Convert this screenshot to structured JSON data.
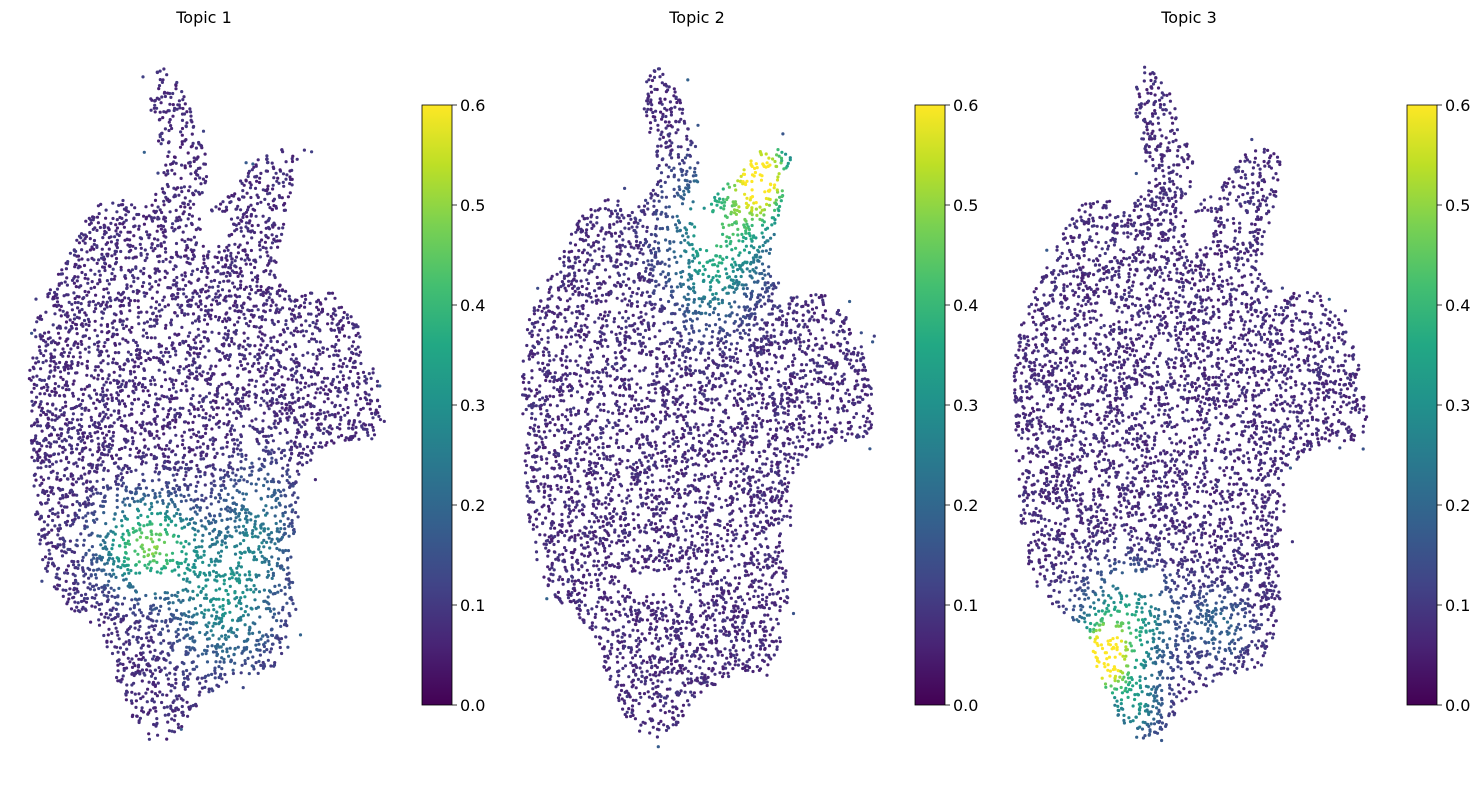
{
  "chart_data": [
    {
      "type": "scatter",
      "title": "Topic 1",
      "colorbar": {
        "colormap": "viridis",
        "range": [
          0.0,
          0.6
        ],
        "ticks": [
          "0.0",
          "0.1",
          "0.2",
          "0.3",
          "0.4",
          "0.5",
          "0.6"
        ]
      },
      "axes_visible": false,
      "high_value_regions": [
        {
          "location": "lower-center",
          "approx_value": 0.45
        },
        {
          "location": "lower-right",
          "approx_value": 0.28
        }
      ]
    },
    {
      "type": "scatter",
      "title": "Topic 2",
      "colorbar": {
        "colormap": "viridis",
        "range": [
          0.0,
          0.6
        ],
        "ticks": [
          "0.0",
          "0.1",
          "0.2",
          "0.3",
          "0.4",
          "0.5",
          "0.6"
        ]
      },
      "axes_visible": false,
      "high_value_regions": [
        {
          "location": "upper-right lobe",
          "approx_value": 0.6
        },
        {
          "location": "upper-center",
          "approx_value": 0.35
        }
      ]
    },
    {
      "type": "scatter",
      "title": "Topic 3",
      "colorbar": {
        "colormap": "viridis",
        "range": [
          0.0,
          0.6
        ],
        "ticks": [
          "0.0",
          "0.1",
          "0.2",
          "0.3",
          "0.4",
          "0.5",
          "0.6"
        ]
      },
      "axes_visible": false,
      "high_value_regions": [
        {
          "location": "lower-left",
          "approx_value": 0.6
        },
        {
          "location": "bottom",
          "approx_value": 0.35
        }
      ]
    }
  ],
  "colors": {
    "viridis": [
      "#440154",
      "#482475",
      "#414487",
      "#355f8d",
      "#2a788e",
      "#21918c",
      "#22a884",
      "#44bf70",
      "#7ad151",
      "#bddf26",
      "#fde725"
    ]
  }
}
